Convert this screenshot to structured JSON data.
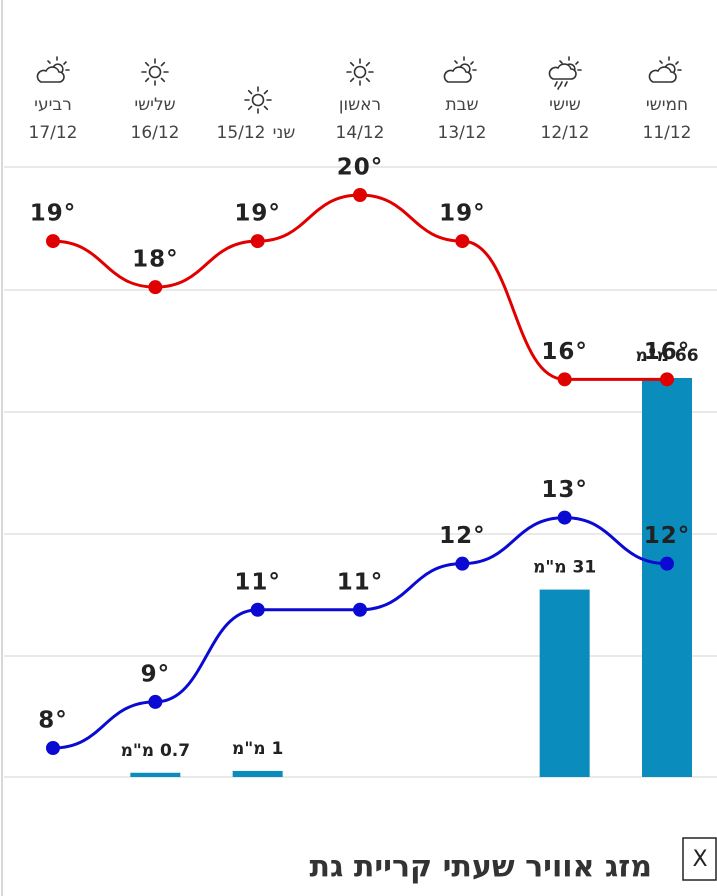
{
  "chart_data": {
    "type": "combo",
    "categories": [
      "חמישי",
      "שישי",
      "שבת",
      "ראשון",
      "שני",
      "שלישי",
      "רביעי"
    ],
    "dates": [
      "11/12",
      "12/12",
      "13/12",
      "14/12",
      "15/12",
      "16/12",
      "17/12"
    ],
    "series": [
      {
        "kind": "line",
        "color": "#e00000",
        "values": [
          16,
          16,
          19,
          20,
          19,
          18,
          19
        ],
        "value_labels": [
          "16°",
          "16°",
          "19°",
          "20°",
          "19°",
          "18°",
          "19°"
        ]
      },
      {
        "kind": "line",
        "color": "#0a0ad2",
        "values": [
          12,
          13,
          12,
          11,
          11,
          9,
          8
        ],
        "value_labels": [
          "12°",
          "13°",
          "12°",
          "11°",
          "11°",
          "9°",
          "8°"
        ]
      },
      {
        "kind": "bar",
        "color": "#0a8cbc",
        "axis": "y2",
        "values": [
          66,
          31,
          null,
          null,
          1,
          0.7,
          null
        ],
        "value_labels": [
          "66 מ\"מ",
          "31 מ\"מ",
          null,
          null,
          "1 מ\"מ",
          "0.7 מ\"מ",
          null
        ]
      }
    ],
    "footer_title": "מזג אוויר שעתי קריית גת",
    "close_label": "X"
  }
}
